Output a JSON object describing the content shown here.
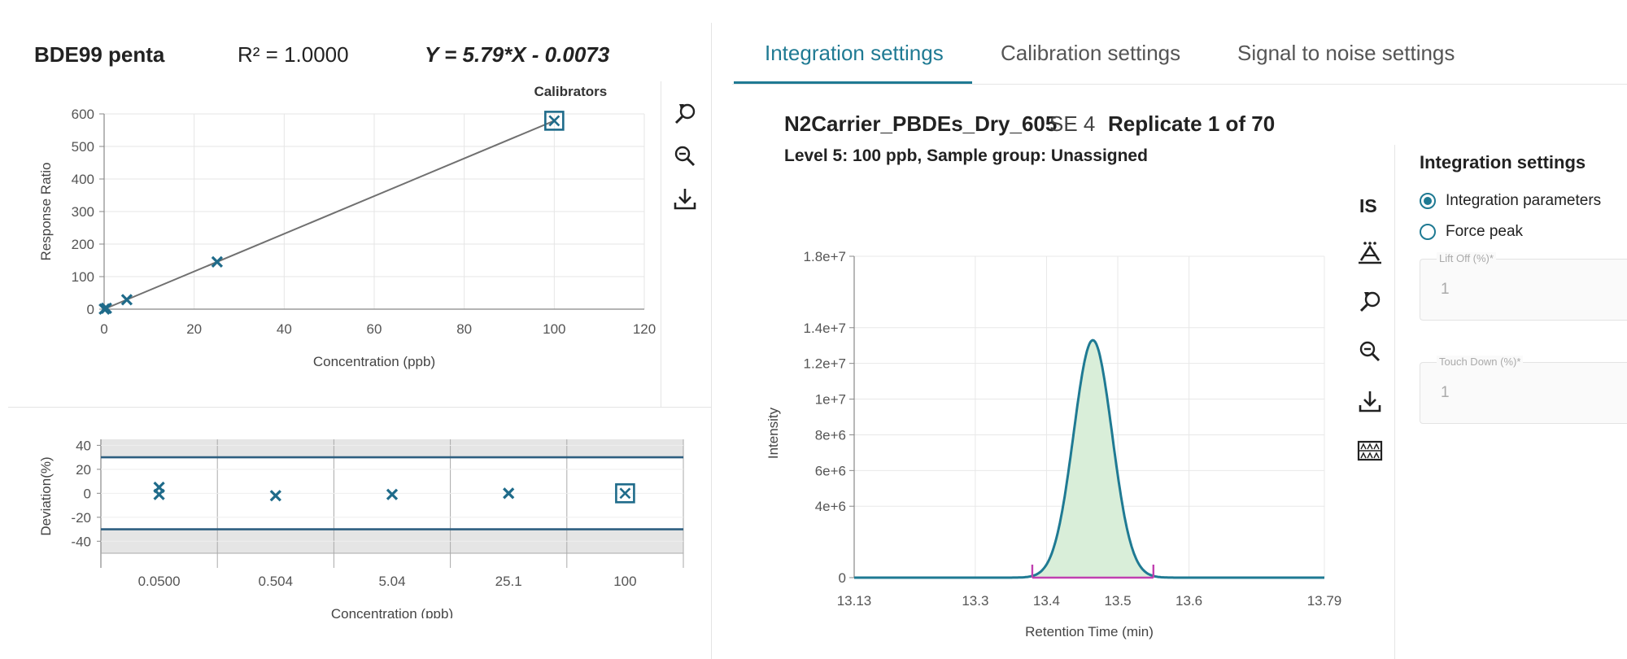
{
  "calibration": {
    "compound": "BDE99 penta",
    "r_squared": "R² = 1.0000",
    "equation": "Y = 5.79*X - 0.0073",
    "legend_label": "Calibrators"
  },
  "tabs": [
    {
      "label": "Integration settings",
      "active": true
    },
    {
      "label": "Calibration settings",
      "active": false
    },
    {
      "label": "Signal to noise settings",
      "active": false
    }
  ],
  "sample": {
    "name": "N2Carrier_PBDEs_Dry_605",
    "se": "SE 4",
    "replicate": "Replicate 1 of 70",
    "subtitle": "Level 5: 100 ppb, Sample group: Unassigned"
  },
  "chromatogram_toolbar": {
    "is_label": "IS"
  },
  "integration_panel": {
    "title": "Integration settings",
    "options": [
      {
        "label": "Integration parameters",
        "selected": true
      },
      {
        "label": "Force peak",
        "selected": false
      }
    ],
    "lift_off": {
      "label": "Lift Off (%)*",
      "value": "1"
    },
    "touch_down": {
      "label": "Touch Down (%)*",
      "value": "1"
    }
  },
  "colors": {
    "accent": "#1f7a93",
    "marker": "#1f6b8a",
    "fit_line": "#707070",
    "peak_fill": "#d9eed9",
    "baseline": "#c040b0",
    "limit_line": "#2e5f80"
  },
  "icons": [
    "zoom-reset-icon",
    "zoom-out-icon",
    "download-icon",
    "peak-label-icon",
    "peak-grid-icon"
  ],
  "chart_data": [
    {
      "id": "calibration",
      "type": "scatter",
      "title": "",
      "xlabel": "Concentration (ppb)",
      "ylabel": "Response Ratio",
      "xlim": [
        0,
        120
      ],
      "ylim": [
        0,
        600
      ],
      "x_ticks": [
        "0",
        "20",
        "40",
        "60",
        "80",
        "100",
        "120"
      ],
      "y_ticks": [
        "0",
        "100",
        "200",
        "300",
        "400",
        "500",
        "600"
      ],
      "grid": true,
      "legend": "top-right",
      "points": [
        {
          "x": 0.05,
          "y": 0.3,
          "marker": "x"
        },
        {
          "x": 0.504,
          "y": 2.9,
          "marker": "x"
        },
        {
          "x": 5.04,
          "y": 29.2,
          "marker": "x"
        },
        {
          "x": 25.1,
          "y": 145.3,
          "marker": "x"
        },
        {
          "x": 100,
          "y": 579,
          "marker": "boxed-x"
        }
      ],
      "fit": {
        "slope": 5.79,
        "intercept": -0.0073
      }
    },
    {
      "id": "deviation",
      "type": "scatter",
      "title": "",
      "xlabel": "Concentration (ppb)",
      "ylabel": "Deviation(%)",
      "categories": [
        "0.0500",
        "0.504",
        "5.04",
        "25.1",
        "100"
      ],
      "ylim": [
        -50,
        45
      ],
      "y_ticks": [
        "40",
        "20",
        "0",
        "-20",
        "-40"
      ],
      "limits": [
        30,
        -30
      ],
      "points": [
        {
          "category": "0.0500",
          "y": 5,
          "marker": "x"
        },
        {
          "category": "0.0500",
          "y": -1,
          "marker": "x"
        },
        {
          "category": "0.504",
          "y": -2,
          "marker": "x"
        },
        {
          "category": "5.04",
          "y": -1,
          "marker": "x"
        },
        {
          "category": "25.1",
          "y": 0,
          "marker": "x"
        },
        {
          "category": "100",
          "y": 0,
          "marker": "boxed-x"
        }
      ]
    },
    {
      "id": "chromatogram",
      "type": "line",
      "title": "",
      "xlabel": "Retention Time (min)",
      "ylabel": "Intensity",
      "xlim": [
        13.13,
        13.79
      ],
      "ylim": [
        0,
        18000000
      ],
      "x_ticks": [
        {
          "value": 13.13,
          "label": "13.13"
        },
        {
          "value": 13.3,
          "label": "13.3"
        },
        {
          "value": 13.4,
          "label": "13.4"
        },
        {
          "value": 13.5,
          "label": "13.5"
        },
        {
          "value": 13.6,
          "label": "13.6"
        },
        {
          "value": 13.79,
          "label": "13.79"
        }
      ],
      "y_ticks": [
        {
          "value": 0,
          "label": "0"
        },
        {
          "value": 4000000,
          "label": "4e+6"
        },
        {
          "value": 6000000,
          "label": "6e+6"
        },
        {
          "value": 8000000,
          "label": "8e+6"
        },
        {
          "value": 10000000,
          "label": "1e+7"
        },
        {
          "value": 12000000,
          "label": "1.2e+7"
        },
        {
          "value": 14000000,
          "label": "1.4e+7"
        },
        {
          "value": 18000000,
          "label": "1.8e+7"
        }
      ],
      "peak": {
        "apex_time": 13.465,
        "apex_intensity": 13300000,
        "start": 13.38,
        "end": 13.55
      },
      "grid": true
    }
  ]
}
